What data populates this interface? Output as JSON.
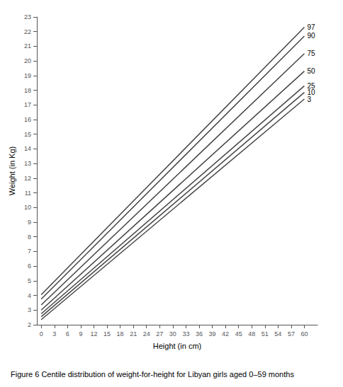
{
  "chart_data": {
    "type": "line",
    "title": "Figure 6 Centile distribution of weight-for-height for Libyan girls aged 0–59 months",
    "xlabel": "Height (in cm)",
    "ylabel": "Weight (in Kg)",
    "x": [
      0,
      60
    ],
    "series": [
      {
        "name": "97",
        "values": [
          4.05,
          22.3
        ]
      },
      {
        "name": "90",
        "values": [
          3.75,
          21.7
        ]
      },
      {
        "name": "75",
        "values": [
          3.35,
          20.5
        ]
      },
      {
        "name": "50",
        "values": [
          3.0,
          19.3
        ]
      },
      {
        "name": "25",
        "values": [
          2.75,
          18.3
        ]
      },
      {
        "name": "10",
        "values": [
          2.55,
          17.85
        ]
      },
      {
        "name": "3",
        "values": [
          2.35,
          17.4
        ]
      }
    ],
    "color": "#444444",
    "xlim": [
      -1,
      63
    ],
    "ylim": [
      2,
      23
    ],
    "xticks": [
      0,
      3,
      6,
      9,
      12,
      15,
      18,
      21,
      24,
      27,
      30,
      33,
      36,
      39,
      42,
      45,
      48,
      51,
      54,
      57,
      60
    ],
    "yticks": [
      2,
      3,
      4,
      5,
      6,
      7,
      8,
      9,
      10,
      11,
      12,
      13,
      14,
      15,
      16,
      17,
      18,
      19,
      20,
      21,
      22,
      23
    ],
    "grid": false
  }
}
